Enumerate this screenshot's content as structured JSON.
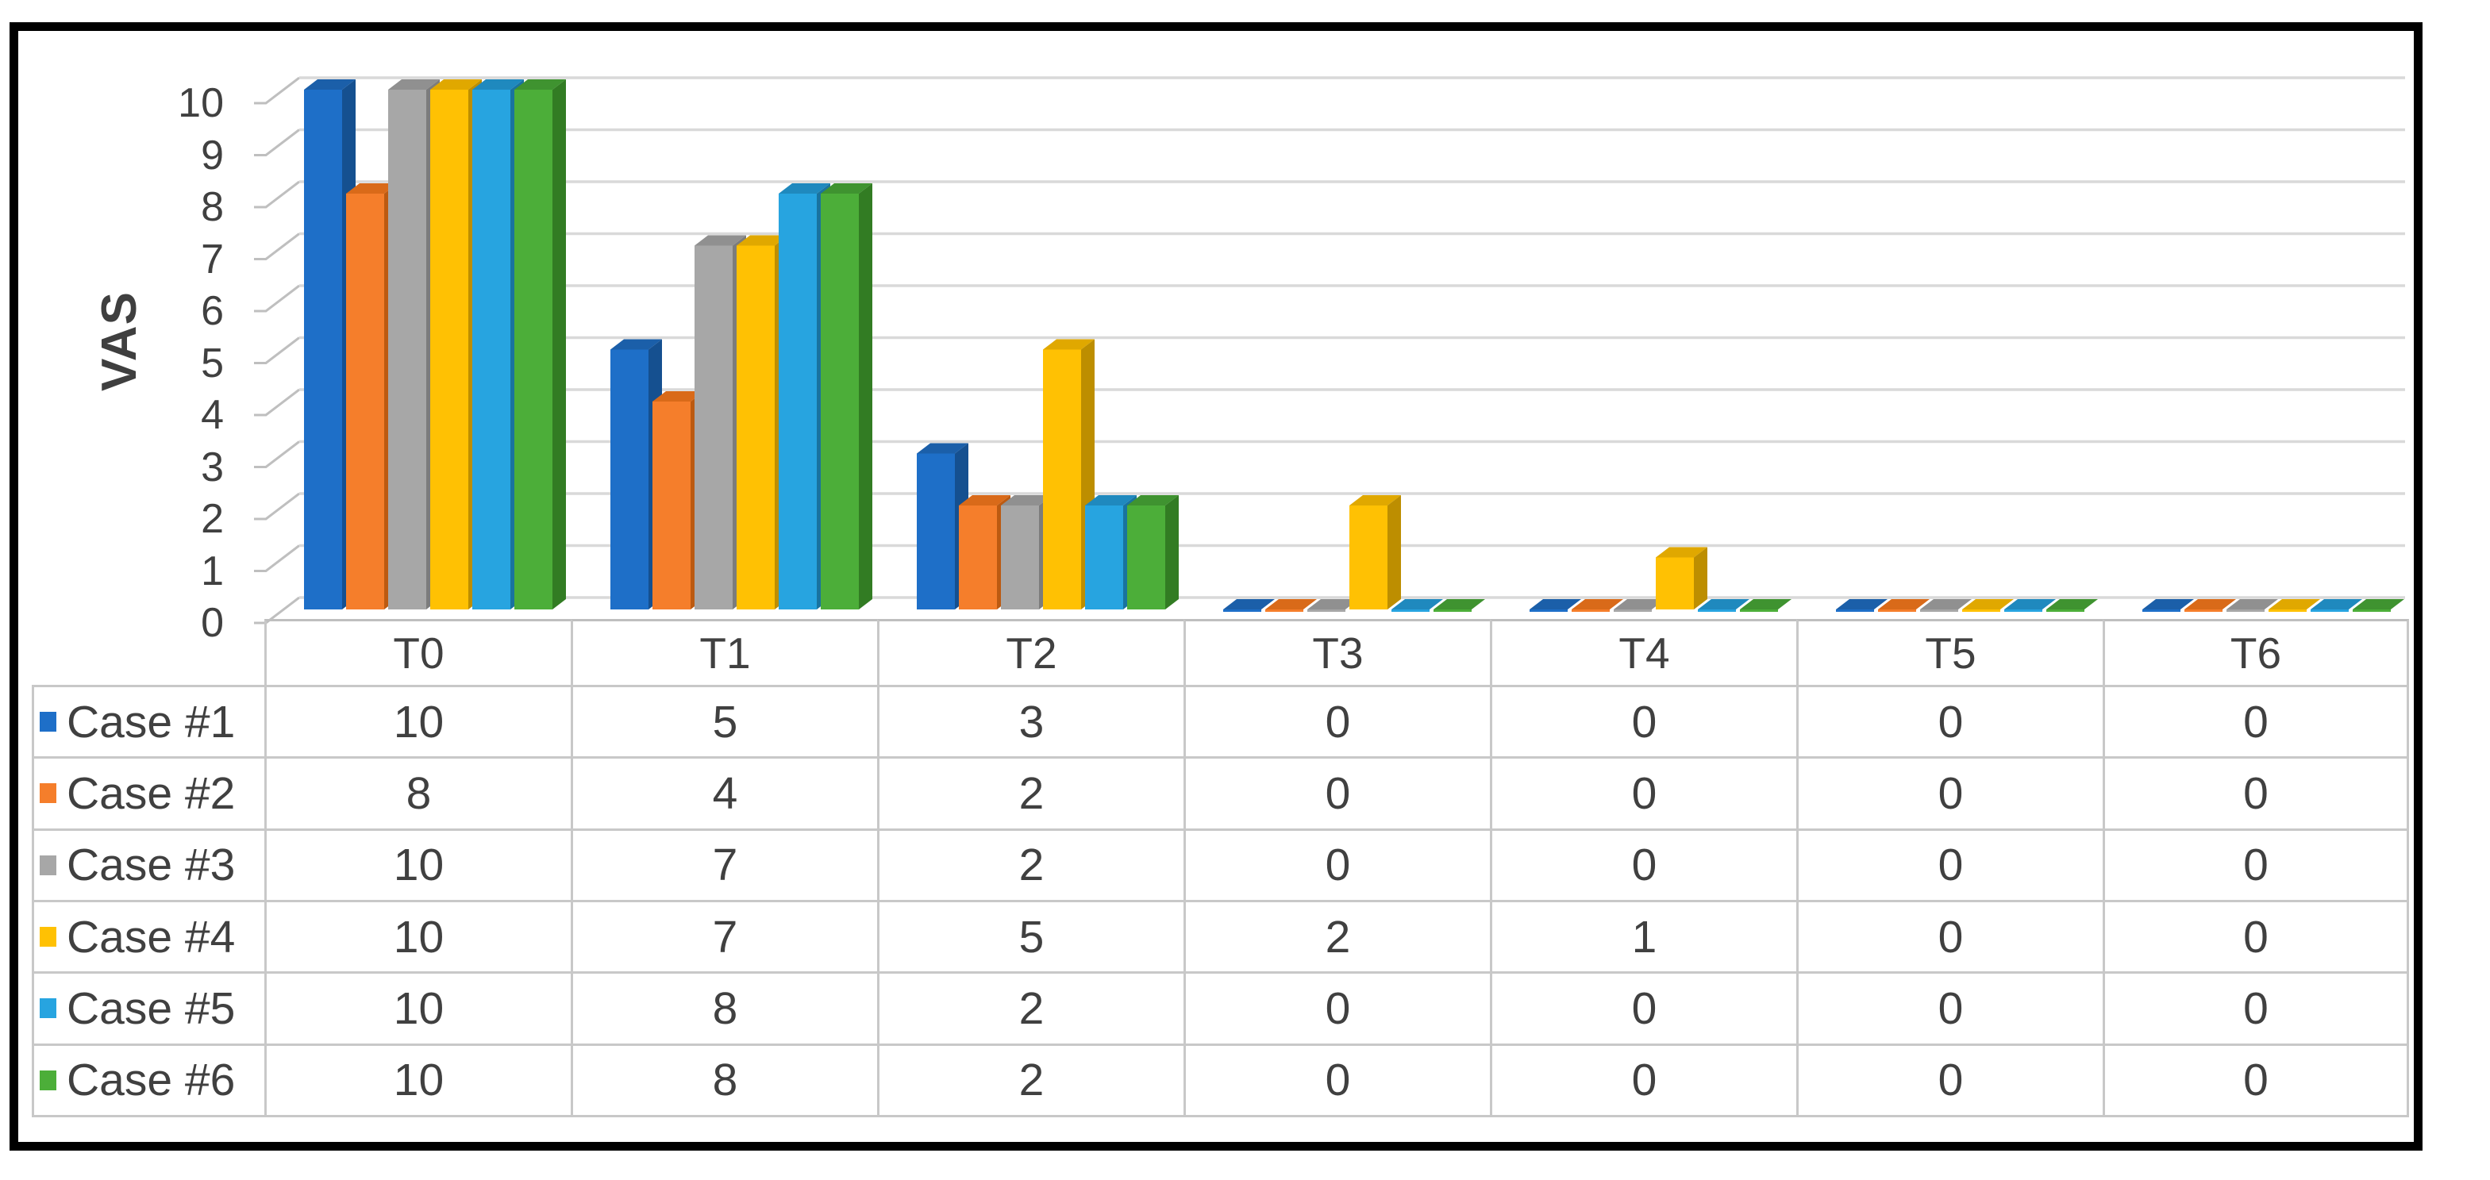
{
  "chart_data": {
    "type": "bar",
    "variant": "3d-clustered-column",
    "title": "",
    "ylabel": "VAS",
    "xlabel": "",
    "categories": [
      "T0",
      "T1",
      "T2",
      "T3",
      "T4",
      "T5",
      "T6"
    ],
    "series": [
      {
        "name": "Case #1",
        "values": [
          10,
          5,
          3,
          0,
          0,
          0,
          0
        ],
        "color": "#1E6FC8",
        "color_top": "#1B5FA9",
        "color_side": "#155090"
      },
      {
        "name": "Case #2",
        "values": [
          8,
          4,
          2,
          0,
          0,
          0,
          0
        ],
        "color": "#F57E2B",
        "color_top": "#D96A19",
        "color_side": "#BC5A11"
      },
      {
        "name": "Case #3",
        "values": [
          10,
          7,
          2,
          0,
          0,
          0,
          0
        ],
        "color": "#A7A7A7",
        "color_top": "#909090",
        "color_side": "#7C7C7C"
      },
      {
        "name": "Case #4",
        "values": [
          10,
          7,
          5,
          2,
          1,
          0,
          0
        ],
        "color": "#FFC103",
        "color_top": "#E0A800",
        "color_side": "#BD8E00"
      },
      {
        "name": "Case #5",
        "values": [
          10,
          8,
          2,
          0,
          0,
          0,
          0
        ],
        "color": "#27A4E0",
        "color_top": "#1F89BE",
        "color_side": "#19739F"
      },
      {
        "name": "Case #6",
        "values": [
          10,
          8,
          2,
          0,
          0,
          0,
          0
        ],
        "color": "#4CAE39",
        "color_top": "#3F9330",
        "color_side": "#327C23"
      }
    ],
    "ylim": [
      0,
      10
    ],
    "yticks": [
      0,
      1,
      2,
      3,
      4,
      5,
      6,
      7,
      8,
      9,
      10
    ],
    "grid": true,
    "legend_position": "data-table-left"
  },
  "table": {
    "corner_label": "",
    "columns": [
      "T0",
      "T1",
      "T2",
      "T3",
      "T4",
      "T5",
      "T6"
    ],
    "rows": [
      {
        "label": "Case #1",
        "swatch": "#1E6FC8",
        "values": [
          "10",
          "5",
          "3",
          "0",
          "0",
          "0",
          "0"
        ]
      },
      {
        "label": "Case #2",
        "swatch": "#F57E2B",
        "values": [
          "8",
          "4",
          "2",
          "0",
          "0",
          "0",
          "0"
        ]
      },
      {
        "label": "Case #3",
        "swatch": "#A7A7A7",
        "values": [
          "10",
          "7",
          "2",
          "0",
          "0",
          "0",
          "0"
        ]
      },
      {
        "label": "Case #4",
        "swatch": "#FFC103",
        "values": [
          "10",
          "7",
          "5",
          "2",
          "1",
          "0",
          "0"
        ]
      },
      {
        "label": "Case #5",
        "swatch": "#27A4E0",
        "values": [
          "10",
          "8",
          "2",
          "0",
          "0",
          "0",
          "0"
        ]
      },
      {
        "label": "Case #6",
        "swatch": "#4CAE39",
        "values": [
          "10",
          "8",
          "2",
          "0",
          "0",
          "0",
          "0"
        ]
      }
    ]
  },
  "colors": {
    "text": "#404040",
    "gridline": "#D9D9D9",
    "axis": "#BFBFBF",
    "table_border": "#C8C8C8",
    "frame": "#000000",
    "background": "#FFFFFF"
  }
}
